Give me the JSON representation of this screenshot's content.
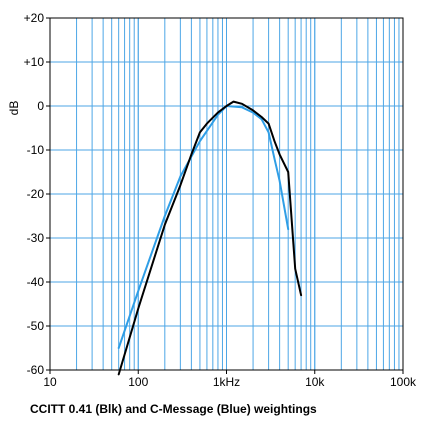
{
  "chart_data": {
    "type": "line",
    "title": "CCITT 0.41 (Blk) and C-Message (Blue)   weightings",
    "xlabel": "",
    "ylabel": "dB",
    "x_scale": "log",
    "xlim": [
      10,
      100000
    ],
    "ylim": [
      -60,
      20
    ],
    "grid": true,
    "x_ticks": [
      {
        "value": 10,
        "label": "10"
      },
      {
        "value": 100,
        "label": "100"
      },
      {
        "value": 1000,
        "label": "1kHz"
      },
      {
        "value": 10000,
        "label": "10k"
      },
      {
        "value": 100000,
        "label": "100k"
      }
    ],
    "y_ticks": [
      {
        "value": 20,
        "label": "+20"
      },
      {
        "value": 10,
        "label": "+10"
      },
      {
        "value": 0,
        "label": "0"
      },
      {
        "value": -10,
        "label": "-10"
      },
      {
        "value": -20,
        "label": "-20"
      },
      {
        "value": -30,
        "label": "-30"
      },
      {
        "value": -40,
        "label": "-40"
      },
      {
        "value": -50,
        "label": "-50"
      },
      {
        "value": -60,
        "label": "-60"
      }
    ],
    "series": [
      {
        "color": "#2f9ee6",
        "x": [
          60,
          100,
          200,
          300,
          500,
          800,
          1000,
          1500,
          2000,
          2500,
          3000,
          3500,
          4000,
          5000
        ],
        "y": [
          -55,
          -42,
          -25,
          -16,
          -8,
          -2,
          0,
          -0.3,
          -1.5,
          -3,
          -6,
          -12,
          -17,
          -28
        ]
      },
      {
        "color": "#000000",
        "x": [
          60,
          100,
          200,
          300,
          400,
          500,
          600,
          800,
          1000,
          1200,
          1500,
          2000,
          2500,
          3000,
          3500,
          4000,
          5000,
          6000,
          7000
        ],
        "y": [
          -61,
          -46,
          -27,
          -18,
          -11,
          -6,
          -4,
          -1.5,
          0,
          1,
          0.5,
          -1,
          -2.5,
          -4,
          -8,
          -11,
          -15,
          -37,
          -43
        ]
      }
    ]
  }
}
